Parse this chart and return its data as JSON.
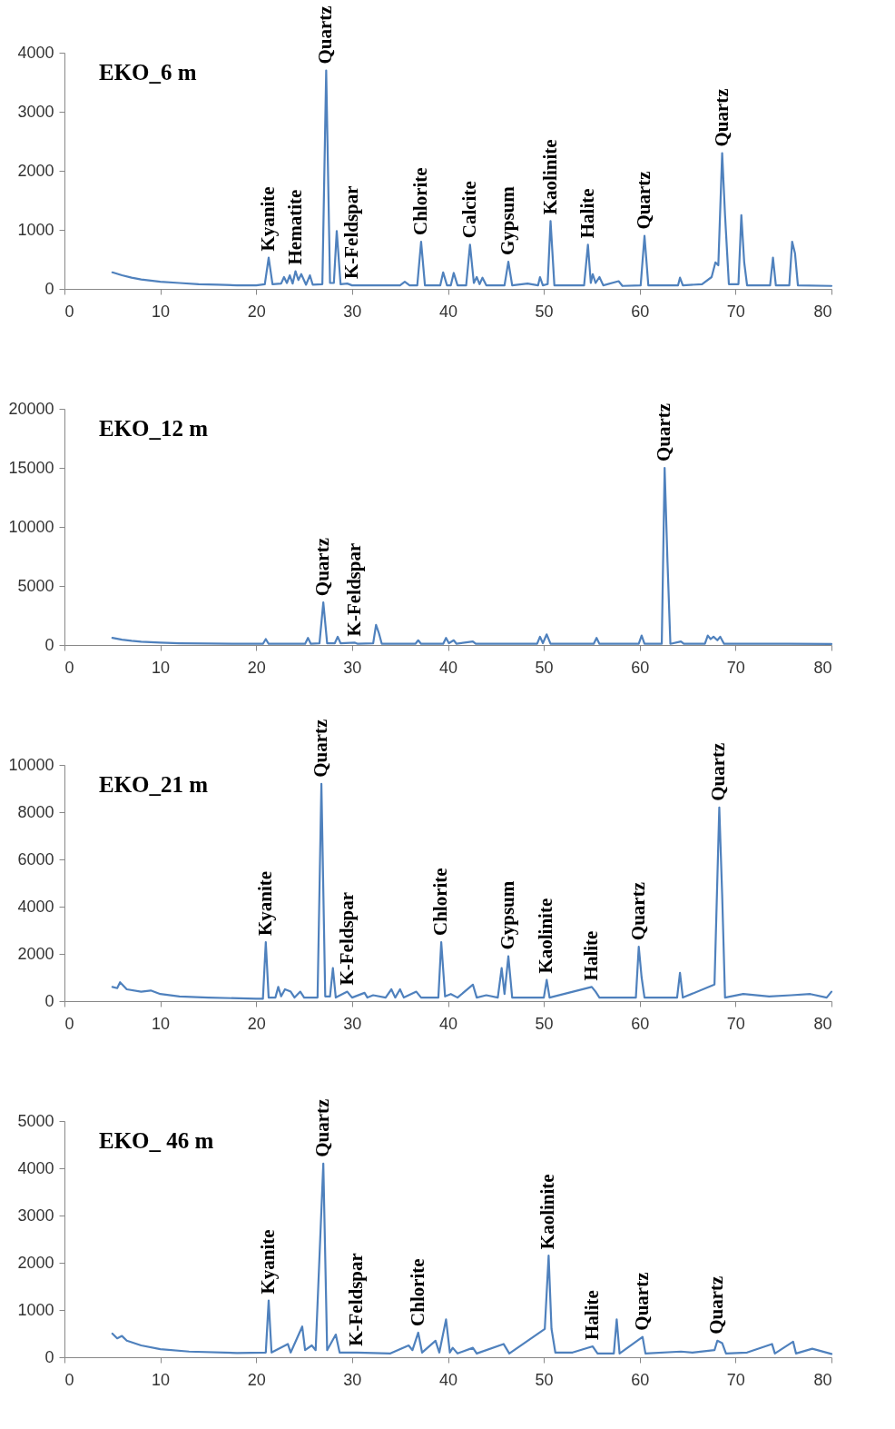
{
  "chart_data": [
    {
      "type": "line",
      "title": "EKO_6 m",
      "color": "#4f81bd",
      "xlim": [
        0,
        80
      ],
      "xticks": [
        0,
        10,
        20,
        30,
        40,
        50,
        60,
        70,
        80
      ],
      "ylim": [
        0,
        4000
      ],
      "yticks": [
        0,
        1000,
        2000,
        3000,
        4000
      ],
      "x": [
        5,
        6,
        7,
        8,
        9,
        10,
        12,
        14,
        16,
        18,
        20,
        20.9,
        21.3,
        21.7,
        22.6,
        22.9,
        23.2,
        23.5,
        23.8,
        24.1,
        24.4,
        24.7,
        25.2,
        25.6,
        25.9,
        26.9,
        27.3,
        27.7,
        28.1,
        28.4,
        28.8,
        29.5,
        30,
        35,
        35.5,
        36,
        36.8,
        37.2,
        37.6,
        39.2,
        39.5,
        39.9,
        40.3,
        40.6,
        41,
        41.9,
        42.3,
        42.7,
        43,
        43.3,
        43.6,
        44,
        45.9,
        46.3,
        46.7,
        48.3,
        49.4,
        49.6,
        49.9,
        50.4,
        50.7,
        51.1,
        54.2,
        54.6,
        54.9,
        55.1,
        55.4,
        55.8,
        56.2,
        57.8,
        58.2,
        60.1,
        60.5,
        60.9,
        64,
        64.2,
        64.5,
        66.5,
        67.5,
        67.9,
        68.2,
        68.6,
        68.9,
        69.3,
        70.3,
        70.6,
        70.9,
        71.2,
        73.6,
        73.9,
        74.2,
        75.6,
        75.9,
        76.2,
        76.5,
        80
      ],
      "values": [
        280,
        230,
        190,
        160,
        140,
        120,
        100,
        80,
        70,
        60,
        60,
        80,
        530,
        80,
        90,
        200,
        100,
        230,
        90,
        300,
        150,
        250,
        70,
        230,
        70,
        80,
        3700,
        100,
        100,
        980,
        80,
        90,
        60,
        60,
        120,
        60,
        60,
        800,
        60,
        60,
        280,
        60,
        60,
        270,
        60,
        60,
        750,
        100,
        200,
        80,
        190,
        60,
        60,
        460,
        60,
        90,
        60,
        200,
        60,
        80,
        1150,
        60,
        60,
        750,
        100,
        250,
        100,
        200,
        60,
        130,
        50,
        60,
        900,
        60,
        60,
        190,
        60,
        80,
        200,
        450,
        400,
        2300,
        1250,
        80,
        80,
        1250,
        450,
        60,
        60,
        530,
        60,
        60,
        800,
        600,
        60,
        50
      ],
      "annotations": [
        {
          "text": "Kyanite",
          "x": 21.3,
          "y": 530
        },
        {
          "text": "Hematite",
          "x": 24.1,
          "y": 300
        },
        {
          "text": "Quartz",
          "x": 27.3,
          "y": 3700
        },
        {
          "text": "K-Feldspar",
          "x": 30,
          "y": 60
        },
        {
          "text": "Chlorite",
          "x": 37.2,
          "y": 800
        },
        {
          "text": "Calcite",
          "x": 42.3,
          "y": 750
        },
        {
          "text": "Gypsum",
          "x": 46.3,
          "y": 460
        },
        {
          "text": "Kaolinite",
          "x": 50.7,
          "y": 1150
        },
        {
          "text": "Halite",
          "x": 54.6,
          "y": 750
        },
        {
          "text": "Quartz",
          "x": 60.5,
          "y": 900
        },
        {
          "text": "Quartz",
          "x": 68.6,
          "y": 2300
        }
      ]
    },
    {
      "type": "line",
      "title": "EKO_12 m",
      "color": "#4f81bd",
      "xlim": [
        0,
        80
      ],
      "xticks": [
        0,
        10,
        20,
        30,
        40,
        50,
        60,
        70,
        80
      ],
      "ylim": [
        0,
        20000
      ],
      "yticks": [
        0,
        5000,
        10000,
        15000,
        20000
      ],
      "x": [
        5,
        6,
        7,
        8,
        10,
        12,
        15,
        20,
        20.7,
        21,
        21.3,
        25.1,
        25.4,
        25.7,
        26.6,
        27,
        27.4,
        28.2,
        28.5,
        28.8,
        30.3,
        30.6,
        32.2,
        32.5,
        32.8,
        33.1,
        36.6,
        36.9,
        37.2,
        39.5,
        39.8,
        40.1,
        40.6,
        40.9,
        42.6,
        42.9,
        49.3,
        49.6,
        49.9,
        50.3,
        50.7,
        55.2,
        55.5,
        55.8,
        59.9,
        60.2,
        60.5,
        62.3,
        62.6,
        62.9,
        63.2,
        64.3,
        64.6,
        66.8,
        67.1,
        67.4,
        67.7,
        68.1,
        68.4,
        68.8,
        75.5,
        80
      ],
      "values": [
        600,
        450,
        350,
        280,
        200,
        150,
        120,
        100,
        100,
        500,
        100,
        100,
        600,
        100,
        150,
        3600,
        150,
        150,
        700,
        150,
        200,
        100,
        150,
        1700,
        1000,
        100,
        100,
        400,
        100,
        100,
        600,
        150,
        400,
        100,
        300,
        100,
        100,
        700,
        150,
        900,
        100,
        100,
        600,
        100,
        100,
        800,
        100,
        100,
        15000,
        7000,
        100,
        300,
        100,
        100,
        800,
        500,
        700,
        400,
        700,
        100,
        100,
        80
      ],
      "annotations": [
        {
          "text": "Quartz",
          "x": 27,
          "y": 3600
        },
        {
          "text": "K-Feldspar",
          "x": 30.3,
          "y": 200
        },
        {
          "text": "Quartz",
          "x": 62.6,
          "y": 15000
        }
      ]
    },
    {
      "type": "line",
      "title": "EKO_21 m",
      "color": "#4f81bd",
      "xlim": [
        0,
        80
      ],
      "xticks": [
        0,
        10,
        20,
        30,
        40,
        50,
        60,
        70,
        80
      ],
      "ylim": [
        0,
        10000
      ],
      "yticks": [
        0,
        2000,
        4000,
        6000,
        8000,
        10000
      ],
      "x": [
        5,
        5.5,
        5.8,
        6.5,
        8,
        9,
        10,
        12,
        15,
        20,
        20.7,
        21,
        21.3,
        22,
        22.3,
        22.6,
        23,
        23.6,
        24,
        24.6,
        25,
        26.4,
        26.8,
        27.2,
        27.7,
        28,
        28.3,
        29.5,
        30,
        31.3,
        31.6,
        32.2,
        33.5,
        34.1,
        34.5,
        35,
        35.4,
        36.7,
        37.2,
        39,
        39.3,
        39.7,
        40.3,
        41,
        42.6,
        43,
        44,
        45.2,
        45.6,
        45.9,
        46.3,
        46.7,
        50,
        50.3,
        50.6,
        55,
        55.4,
        55.8,
        59.6,
        59.9,
        60.2,
        60.5,
        63.9,
        64.2,
        64.5,
        67.8,
        68.3,
        68.6,
        68.9,
        70.8,
        73.5,
        75.8,
        77.8,
        79.5,
        80
      ],
      "values": [
        600,
        550,
        800,
        500,
        400,
        450,
        300,
        200,
        150,
        100,
        100,
        2500,
        150,
        150,
        600,
        200,
        500,
        400,
        150,
        400,
        150,
        150,
        9200,
        200,
        200,
        1400,
        150,
        400,
        150,
        350,
        150,
        250,
        150,
        500,
        150,
        500,
        150,
        400,
        150,
        150,
        2500,
        200,
        300,
        150,
        700,
        150,
        250,
        150,
        1400,
        300,
        1900,
        150,
        150,
        900,
        150,
        600,
        400,
        150,
        150,
        2300,
        1000,
        150,
        150,
        1200,
        150,
        700,
        8200,
        4500,
        150,
        300,
        200,
        250,
        300,
        150,
        400
      ],
      "annotations": [
        {
          "text": "Kyanite",
          "x": 21,
          "y": 2500
        },
        {
          "text": "Quartz",
          "x": 26.8,
          "y": 9200
        },
        {
          "text": "K-Feldspar",
          "x": 29.5,
          "y": 400
        },
        {
          "text": "Chlorite",
          "x": 39.3,
          "y": 2500
        },
        {
          "text": "Gypsum",
          "x": 46.3,
          "y": 1900
        },
        {
          "text": "Kaolinite",
          "x": 50.3,
          "y": 900
        },
        {
          "text": "Halite",
          "x": 55,
          "y": 600
        },
        {
          "text": "Quartz",
          "x": 59.9,
          "y": 2300
        },
        {
          "text": "Quartz",
          "x": 68.3,
          "y": 8200
        }
      ]
    },
    {
      "type": "line",
      "title": "EKO_ 46 m",
      "color": "#4f81bd",
      "xlim": [
        0,
        80
      ],
      "xticks": [
        0,
        10,
        20,
        30,
        40,
        50,
        60,
        70,
        80
      ],
      "ylim": [
        0,
        5000
      ],
      "yticks": [
        0,
        1000,
        2000,
        3000,
        4000,
        5000
      ],
      "x": [
        5,
        5.5,
        6,
        6.5,
        8,
        10,
        13,
        18,
        21,
        21.3,
        21.6,
        23.3,
        23.6,
        24.8,
        25.1,
        25.8,
        26.2,
        27,
        27.4,
        28.3,
        28.7,
        30.5,
        34,
        35.9,
        36.3,
        36.9,
        37.3,
        38.7,
        39.1,
        39.8,
        40.2,
        40.5,
        41,
        42.6,
        43,
        45.8,
        46.4,
        50.1,
        50.5,
        50.8,
        51.2,
        53,
        55.1,
        55.6,
        57.3,
        57.6,
        57.9,
        60.3,
        60.6,
        64.3,
        65.5,
        67.8,
        68.1,
        68.6,
        69,
        71.2,
        73.8,
        74.1,
        76,
        76.3,
        78,
        80
      ],
      "values": [
        500,
        400,
        450,
        350,
        250,
        170,
        120,
        90,
        100,
        1200,
        100,
        280,
        100,
        650,
        150,
        250,
        150,
        4100,
        150,
        480,
        100,
        100,
        80,
        250,
        150,
        520,
        100,
        350,
        100,
        800,
        100,
        200,
        80,
        200,
        80,
        280,
        80,
        600,
        2150,
        600,
        100,
        100,
        230,
        80,
        80,
        800,
        80,
        430,
        80,
        120,
        100,
        150,
        350,
        300,
        80,
        100,
        280,
        80,
        330,
        80,
        180,
        70
      ],
      "annotations": [
        {
          "text": "Kyanite",
          "x": 21.3,
          "y": 1200
        },
        {
          "text": "Quartz",
          "x": 27,
          "y": 4100
        },
        {
          "text": "K-Feldspar",
          "x": 30.5,
          "y": 100
        },
        {
          "text": "Chlorite",
          "x": 36.9,
          "y": 520
        },
        {
          "text": "Kaolinite",
          "x": 50.5,
          "y": 2150
        },
        {
          "text": "Halite",
          "x": 55.1,
          "y": 230
        },
        {
          "text": "Quartz",
          "x": 60.3,
          "y": 430
        },
        {
          "text": "Quartz",
          "x": 68.1,
          "y": 350
        }
      ]
    }
  ]
}
